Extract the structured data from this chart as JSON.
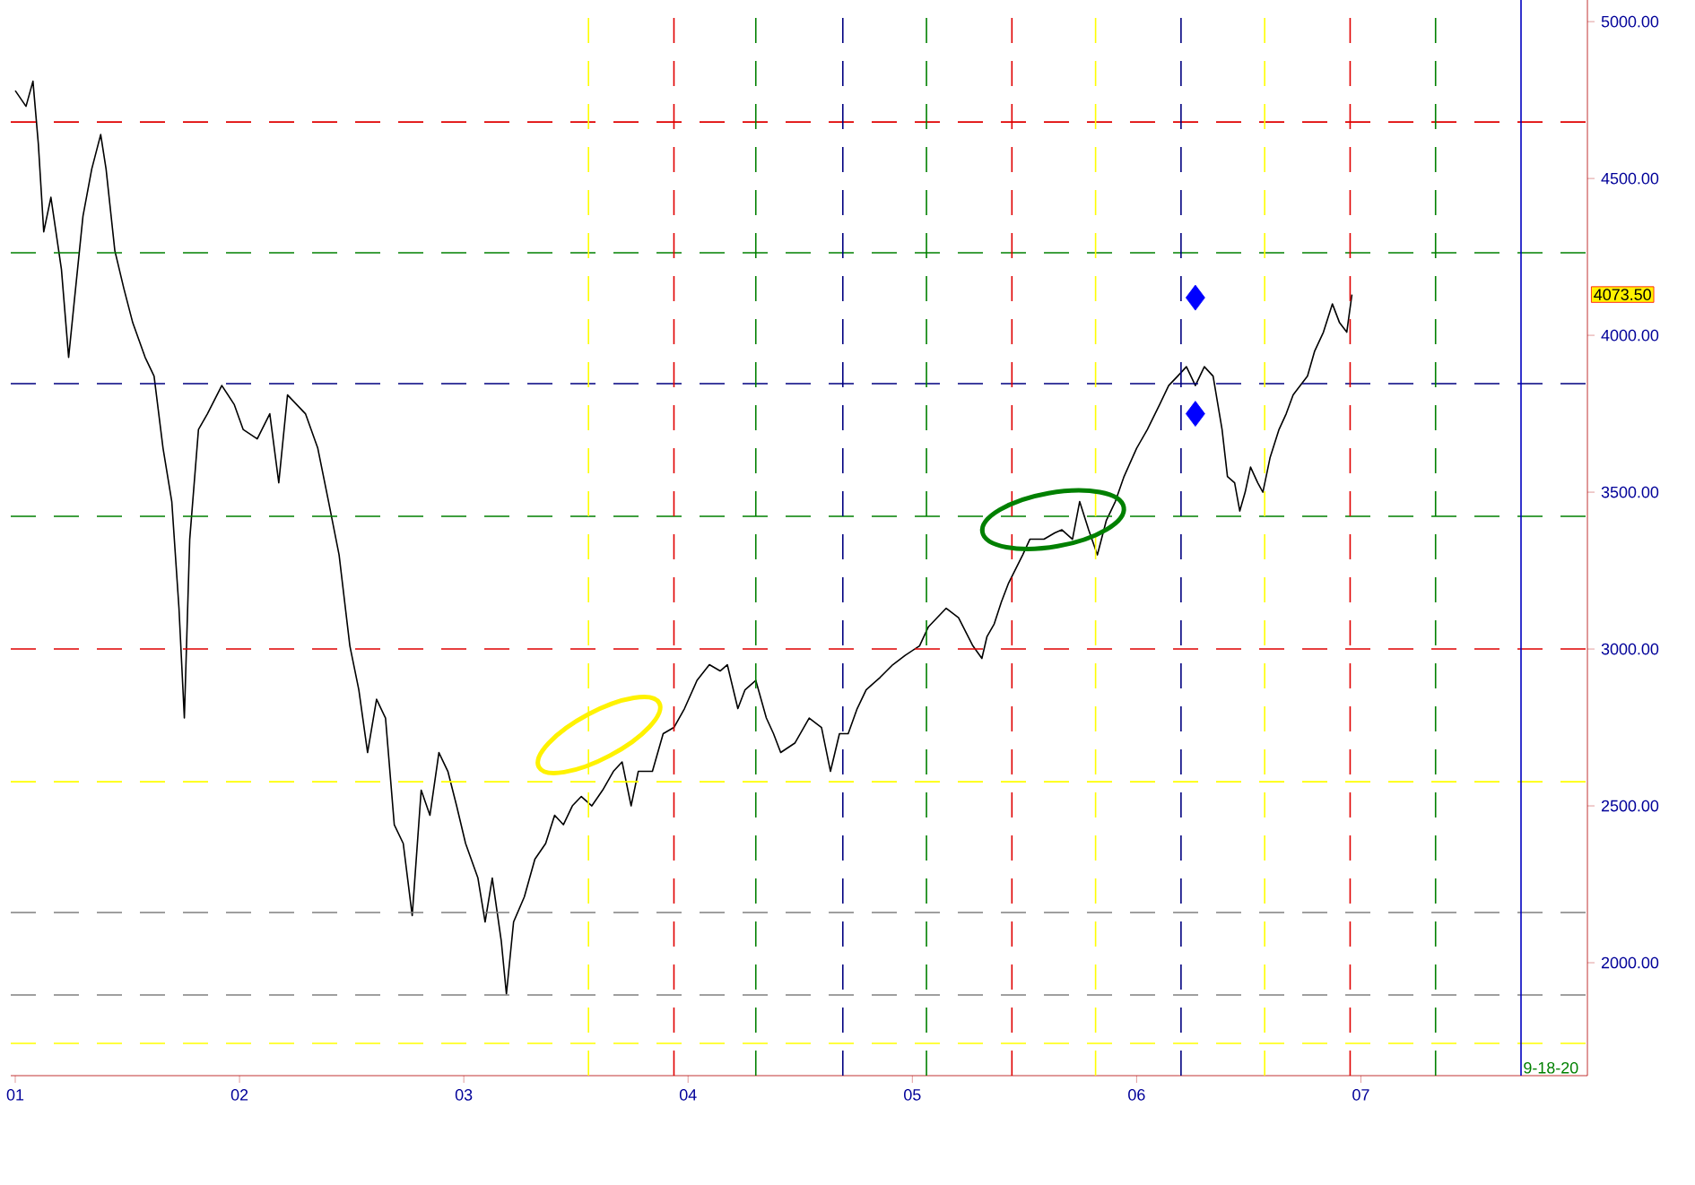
{
  "chart_data": {
    "type": "line",
    "xlim": [
      2000.98,
      2008.01
    ],
    "ylim": [
      1640,
      5069
    ],
    "xticks": [
      {
        "value": 2001,
        "label": "01"
      },
      {
        "value": 2002,
        "label": "02"
      },
      {
        "value": 2003,
        "label": "03"
      },
      {
        "value": 2004,
        "label": "04"
      },
      {
        "value": 2005,
        "label": "05"
      },
      {
        "value": 2006,
        "label": "06"
      },
      {
        "value": 2007,
        "label": "07"
      }
    ],
    "yticks": [
      {
        "value": 2000,
        "label": "2000.00"
      },
      {
        "value": 2500,
        "label": "2500.00"
      },
      {
        "value": 3000,
        "label": "3000.00"
      },
      {
        "value": 3500,
        "label": "3500.00"
      },
      {
        "value": 4000,
        "label": "4000.00"
      },
      {
        "value": 4500,
        "label": "4500.00"
      },
      {
        "value": 5000,
        "label": "5000.00"
      }
    ],
    "grid": false,
    "marker": "none",
    "series": [
      {
        "color": "#000000",
        "line_style": "solid",
        "x": [
          2001.0,
          2001.048,
          2001.079,
          2001.103,
          2001.127,
          2001.159,
          2001.206,
          2001.238,
          2001.262,
          2001.302,
          2001.341,
          2001.381,
          2001.405,
          2001.444,
          2001.484,
          2001.524,
          2001.579,
          2001.619,
          2001.659,
          2001.698,
          2001.73,
          2001.754,
          2001.778,
          2001.817,
          2001.857,
          2001.921,
          2001.976,
          2002.016,
          2002.079,
          2002.135,
          2002.175,
          2002.214,
          2002.254,
          2002.294,
          2002.349,
          2002.397,
          2002.444,
          2002.492,
          2002.532,
          2002.571,
          2002.611,
          2002.651,
          2002.69,
          2002.73,
          2002.77,
          2002.81,
          2002.849,
          2002.889,
          2002.929,
          2002.968,
          2003.008,
          2003.063,
          2003.095,
          2003.127,
          2003.167,
          2003.19,
          2003.222,
          2003.27,
          2003.317,
          2003.365,
          2003.405,
          2003.444,
          2003.484,
          2003.524,
          2003.571,
          2003.619,
          2003.667,
          2003.706,
          2003.746,
          2003.778,
          2003.841,
          2003.889,
          2003.937,
          2003.984,
          2004.04,
          2004.095,
          2004.143,
          2004.175,
          2004.222,
          2004.254,
          2004.302,
          2004.349,
          2004.381,
          2004.413,
          2004.476,
          2004.54,
          2004.595,
          2004.635,
          2004.675,
          2004.714,
          2004.754,
          2004.794,
          2004.857,
          2004.913,
          2004.968,
          2005.032,
          2005.071,
          2005.111,
          2005.151,
          2005.206,
          2005.27,
          2005.31,
          2005.333,
          2005.365,
          2005.397,
          2005.429,
          2005.492,
          2005.524,
          2005.587,
          2005.635,
          2005.667,
          2005.714,
          2005.746,
          2005.786,
          2005.825,
          2005.865,
          2005.905,
          2005.944,
          2006.0,
          2006.048,
          2006.103,
          2006.143,
          2006.183,
          2006.222,
          2006.262,
          2006.302,
          2006.341,
          2006.381,
          2006.405,
          2006.437,
          2006.46,
          2006.484,
          2006.508,
          2006.54,
          2006.563,
          2006.595,
          2006.635,
          2006.667,
          2006.698,
          2006.762,
          2006.794,
          2006.833,
          2006.873,
          2006.905,
          2006.937,
          2006.96
        ],
        "values": [
          4780,
          4730,
          4810,
          4610,
          4330,
          4440,
          4210,
          3930,
          4100,
          4380,
          4530,
          4640,
          4530,
          4270,
          4150,
          4040,
          3930,
          3870,
          3640,
          3470,
          3130,
          2780,
          3350,
          3700,
          3750,
          3840,
          3780,
          3700,
          3670,
          3750,
          3530,
          3810,
          3780,
          3750,
          3640,
          3470,
          3300,
          3010,
          2870,
          2670,
          2840,
          2780,
          2440,
          2380,
          2150,
          2550,
          2470,
          2670,
          2610,
          2500,
          2380,
          2270,
          2130,
          2270,
          2070,
          1900,
          2130,
          2210,
          2330,
          2380,
          2470,
          2440,
          2500,
          2530,
          2500,
          2550,
          2610,
          2640,
          2500,
          2610,
          2610,
          2730,
          2750,
          2810,
          2900,
          2950,
          2930,
          2950,
          2810,
          2870,
          2900,
          2780,
          2730,
          2670,
          2700,
          2780,
          2750,
          2610,
          2730,
          2730,
          2810,
          2870,
          2910,
          2950,
          2980,
          3010,
          3070,
          3100,
          3130,
          3100,
          3010,
          2970,
          3040,
          3080,
          3150,
          3210,
          3300,
          3350,
          3350,
          3370,
          3380,
          3350,
          3470,
          3380,
          3300,
          3410,
          3470,
          3550,
          3640,
          3700,
          3780,
          3840,
          3870,
          3900,
          3840,
          3900,
          3870,
          3700,
          3550,
          3530,
          3440,
          3500,
          3580,
          3530,
          3500,
          3610,
          3700,
          3750,
          3810,
          3870,
          3950,
          4010,
          4100,
          4040,
          4010,
          4130
        ]
      },
      {
        "type": "scatter",
        "color": "#0000ff",
        "marker": "diamond",
        "x": [
          2006.262,
          2006.262
        ],
        "values": [
          4120,
          3750
        ]
      }
    ],
    "ref_lines": [
      {
        "axis": "y",
        "value": 4680,
        "color": "#e00000",
        "line_style": "dashed"
      },
      {
        "axis": "y",
        "value": 4263,
        "color": "#008000",
        "line_style": "dashed"
      },
      {
        "axis": "y",
        "value": 3846,
        "color": "#000080",
        "line_style": "dashed"
      },
      {
        "axis": "y",
        "value": 3423,
        "color": "#008000",
        "line_style": "dashed"
      },
      {
        "axis": "y",
        "value": 3000,
        "color": "#e00000",
        "line_style": "dashed"
      },
      {
        "axis": "y",
        "value": 2577,
        "color": "#ffff00",
        "line_style": "dashed"
      },
      {
        "axis": "y",
        "value": 2160,
        "color": "#808080",
        "line_style": "dashed"
      },
      {
        "axis": "y",
        "value": 1897,
        "color": "#808080",
        "line_style": "dashed"
      },
      {
        "axis": "y",
        "value": 1743,
        "color": "#ffff00",
        "line_style": "dashed"
      },
      {
        "axis": "x",
        "value": 2003.556,
        "color": "#ffff00",
        "line_style": "dashed"
      },
      {
        "axis": "x",
        "value": 2003.937,
        "color": "#e00000",
        "line_style": "dashed"
      },
      {
        "axis": "x",
        "value": 2004.302,
        "color": "#008000",
        "line_style": "dashed"
      },
      {
        "axis": "x",
        "value": 2004.69,
        "color": "#000080",
        "line_style": "dashed"
      },
      {
        "axis": "x",
        "value": 2005.063,
        "color": "#008000",
        "line_style": "dashed"
      },
      {
        "axis": "x",
        "value": 2005.444,
        "color": "#e00000",
        "line_style": "dashed"
      },
      {
        "axis": "x",
        "value": 2005.817,
        "color": "#ffff00",
        "line_style": "dashed"
      },
      {
        "axis": "x",
        "value": 2006.198,
        "color": "#000080",
        "line_style": "dashed"
      },
      {
        "axis": "x",
        "value": 2006.571,
        "color": "#ffff00",
        "line_style": "dashed"
      },
      {
        "axis": "x",
        "value": 2006.952,
        "color": "#e00000",
        "line_style": "dashed"
      },
      {
        "axis": "x",
        "value": 2007.333,
        "color": "#008000",
        "line_style": "dashed"
      },
      {
        "axis": "x",
        "value": 2007.714,
        "color": "#0000c0",
        "line_style": "solid"
      }
    ],
    "annotations": [
      "4073.50",
      "9-18-20"
    ]
  }
}
